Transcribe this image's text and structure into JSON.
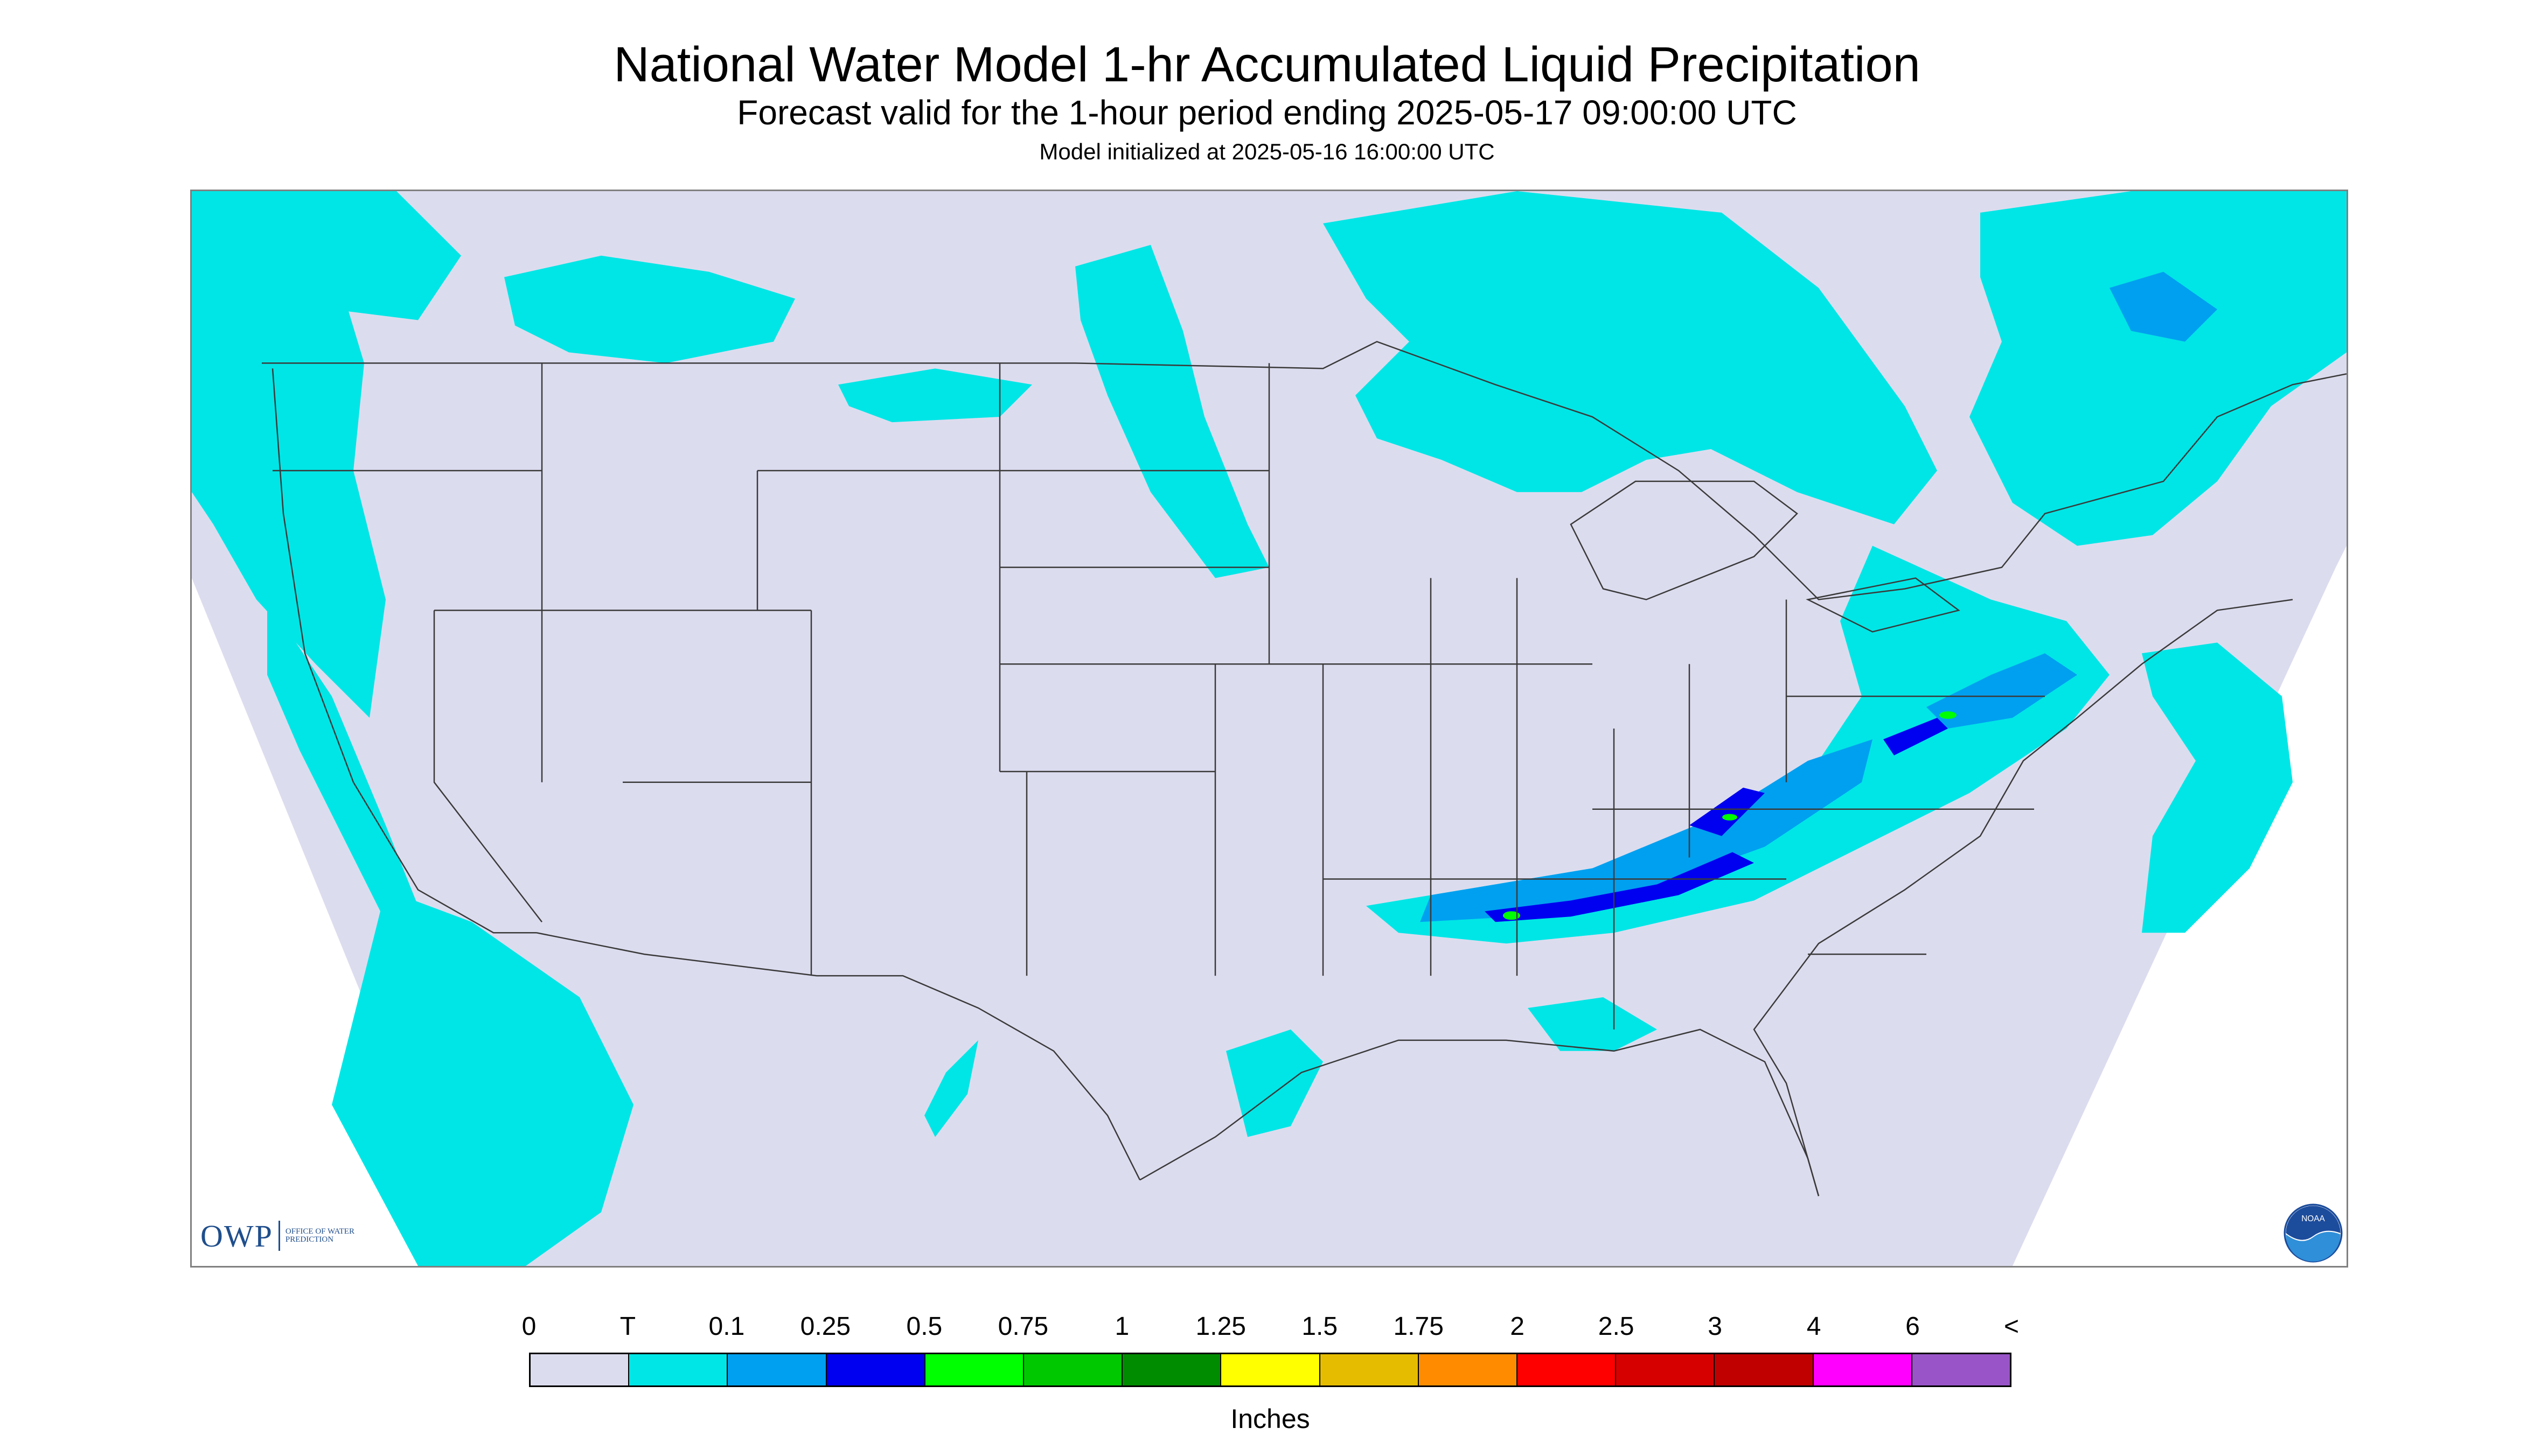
{
  "header": {
    "title": "National Water Model 1-hr Accumulated Liquid Precipitation",
    "subtitle": "Forecast valid for the 1-hour period ending 2025-05-17 09:00:00 UTC",
    "init": "Model initialized at 2025-05-16 16:00:00 UTC"
  },
  "logos": {
    "owp_mark": "OWP",
    "owp_text": "OFFICE OF WATER PREDICTION",
    "noaa": "NOAA"
  },
  "legend": {
    "units": "Inches",
    "ticks": [
      "0",
      "T",
      "0.1",
      "0.25",
      "0.5",
      "0.75",
      "1",
      "1.25",
      "1.5",
      "1.75",
      "2",
      "2.5",
      "3",
      "4",
      "6",
      "<"
    ],
    "colors": [
      "#dcdcef",
      "#00e6e6",
      "#00a0f0",
      "#0000f0",
      "#00ff00",
      "#00c800",
      "#008c00",
      "#ffff00",
      "#e6bc00",
      "#ff8c00",
      "#ff0000",
      "#d70000",
      "#c00000",
      "#ff00ff",
      "#9955c8"
    ]
  },
  "map": {
    "nodata_color": "#ffffff",
    "domain_color": "#dcdcef",
    "border_color": "#3a3a3a",
    "precip_colors": {
      "trace": "#00e6e6",
      "light": "#00a0f0",
      "moderate": "#0000f0",
      "heavy": "#00ff00",
      "heavier": "#00c800"
    }
  }
}
